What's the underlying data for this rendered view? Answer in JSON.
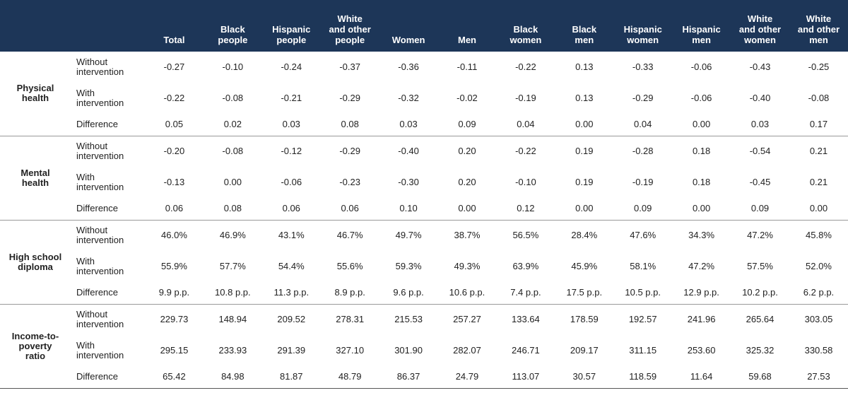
{
  "header": {
    "columns": [
      "Total",
      "Black\npeople",
      "Hispanic\npeople",
      "White\nand other\npeople",
      "Women",
      "Men",
      "Black\nwomen",
      "Black\nmen",
      "Hispanic\nwomen",
      "Hispanic\nmen",
      "White\nand other women",
      "White\nand other\nmen"
    ]
  },
  "groups": [
    {
      "label": "Physical\nhealth",
      "rows": [
        {
          "label": "Without\nintervention",
          "values": [
            "-0.27",
            "-0.10",
            "-0.24",
            "-0.37",
            "-0.36",
            "-0.11",
            "-0.22",
            "0.13",
            "-0.33",
            "-0.06",
            "-0.43",
            "-0.25"
          ]
        },
        {
          "label": "With\nintervention",
          "values": [
            "-0.22",
            "-0.08",
            "-0.21",
            "-0.29",
            "-0.32",
            "-0.02",
            "-0.19",
            "0.13",
            "-0.29",
            "-0.06",
            "-0.40",
            "-0.08"
          ]
        },
        {
          "label": "Difference",
          "values": [
            "0.05",
            "0.02",
            "0.03",
            "0.08",
            "0.03",
            "0.09",
            "0.04",
            "0.00",
            "0.04",
            "0.00",
            "0.03",
            "0.17"
          ]
        }
      ]
    },
    {
      "label": "Mental\nhealth",
      "rows": [
        {
          "label": "Without\nintervention",
          "values": [
            "-0.20",
            "-0.08",
            "-0.12",
            "-0.29",
            "-0.40",
            "0.20",
            "-0.22",
            "0.19",
            "-0.28",
            "0.18",
            "-0.54",
            "0.21"
          ]
        },
        {
          "label": "With\nintervention",
          "values": [
            "-0.13",
            "0.00",
            "-0.06",
            "-0.23",
            "-0.30",
            "0.20",
            "-0.10",
            "0.19",
            "-0.19",
            "0.18",
            "-0.45",
            "0.21"
          ]
        },
        {
          "label": "Difference",
          "values": [
            "0.06",
            "0.08",
            "0.06",
            "0.06",
            "0.10",
            "0.00",
            "0.12",
            "0.00",
            "0.09",
            "0.00",
            "0.09",
            "0.00"
          ]
        }
      ]
    },
    {
      "label": "High school\ndiploma",
      "rows": [
        {
          "label": "Without\nintervention",
          "values": [
            "46.0%",
            "46.9%",
            "43.1%",
            "46.7%",
            "49.7%",
            "38.7%",
            "56.5%",
            "28.4%",
            "47.6%",
            "34.3%",
            "47.2%",
            "45.8%"
          ]
        },
        {
          "label": "With\nintervention",
          "values": [
            "55.9%",
            "57.7%",
            "54.4%",
            "55.6%",
            "59.3%",
            "49.3%",
            "63.9%",
            "45.9%",
            "58.1%",
            "47.2%",
            "57.5%",
            "52.0%"
          ]
        },
        {
          "label": "Difference",
          "values": [
            "9.9 p.p.",
            "10.8 p.p.",
            "11.3 p.p.",
            "8.9 p.p.",
            "9.6 p.p.",
            "10.6 p.p.",
            "7.4 p.p.",
            "17.5 p.p.",
            "10.5 p.p.",
            "12.9 p.p.",
            "10.2 p.p.",
            "6.2 p.p."
          ]
        }
      ]
    },
    {
      "label": "Income-to-\npoverty\nratio",
      "rows": [
        {
          "label": "Without\nintervention",
          "values": [
            "229.73",
            "148.94",
            "209.52",
            "278.31",
            "215.53",
            "257.27",
            "133.64",
            "178.59",
            "192.57",
            "241.96",
            "265.64",
            "303.05"
          ]
        },
        {
          "label": "With\nintervention",
          "values": [
            "295.15",
            "233.93",
            "291.39",
            "327.10",
            "301.90",
            "282.07",
            "246.71",
            "209.17",
            "311.15",
            "253.60",
            "325.32",
            "330.58"
          ]
        },
        {
          "label": "Difference",
          "values": [
            "65.42",
            "84.98",
            "81.87",
            "48.79",
            "86.37",
            "24.79",
            "113.07",
            "30.57",
            "118.59",
            "11.64",
            "59.68",
            "27.53"
          ]
        }
      ]
    }
  ]
}
